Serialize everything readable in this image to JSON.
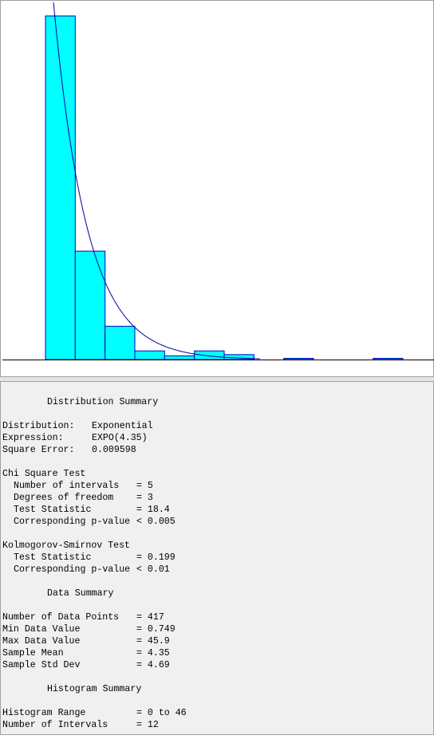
{
  "chart_data": {
    "type": "histogram",
    "bins": [
      0,
      3.83,
      7.67,
      11.5,
      15.33,
      19.17,
      23,
      26.83,
      30.67,
      34.5,
      38.33,
      42.17,
      46
    ],
    "counts": [
      279,
      88,
      27,
      7,
      3,
      7,
      4,
      0,
      1,
      0,
      0,
      1
    ],
    "color": "#00ffff",
    "curve_color": "#0000a0",
    "xlim": [
      0,
      46
    ],
    "ylim": [
      0,
      290
    ]
  },
  "distribution_summary": {
    "title": "Distribution Summary",
    "rows": [
      {
        "label": "Distribution:",
        "value": "Exponential"
      },
      {
        "label": "Expression:",
        "value": "EXPO(4.35)"
      },
      {
        "label": "Square Error:",
        "value": "0.009598"
      }
    ]
  },
  "chi_square_test": {
    "title": "Chi Square Test",
    "rows": [
      {
        "label": "Number of intervals",
        "value": "= 5"
      },
      {
        "label": "Degrees of freedom",
        "value": "= 3"
      },
      {
        "label": "Test Statistic",
        "value": "= 18.4"
      },
      {
        "label": "Corresponding p-value",
        "value": "< 0.005"
      }
    ]
  },
  "ks_test": {
    "title": "Kolmogorov-Smirnov Test",
    "rows": [
      {
        "label": "Test Statistic",
        "value": "= 0.199"
      },
      {
        "label": "Corresponding p-value",
        "value": "< 0.01"
      }
    ]
  },
  "data_summary": {
    "title": "Data Summary",
    "rows": [
      {
        "label": "Number of Data Points",
        "value": "= 417"
      },
      {
        "label": "Min Data Value",
        "value": "= 0.749"
      },
      {
        "label": "Max Data Value",
        "value": "= 45.9"
      },
      {
        "label": "Sample Mean",
        "value": "= 4.35"
      },
      {
        "label": "Sample Std Dev",
        "value": "= 4.69"
      }
    ]
  },
  "histogram_summary": {
    "title": "Histogram Summary",
    "rows": [
      {
        "label": "Histogram Range",
        "value": "= 0 to 46"
      },
      {
        "label": "Number of Intervals",
        "value": "= 12"
      }
    ]
  }
}
